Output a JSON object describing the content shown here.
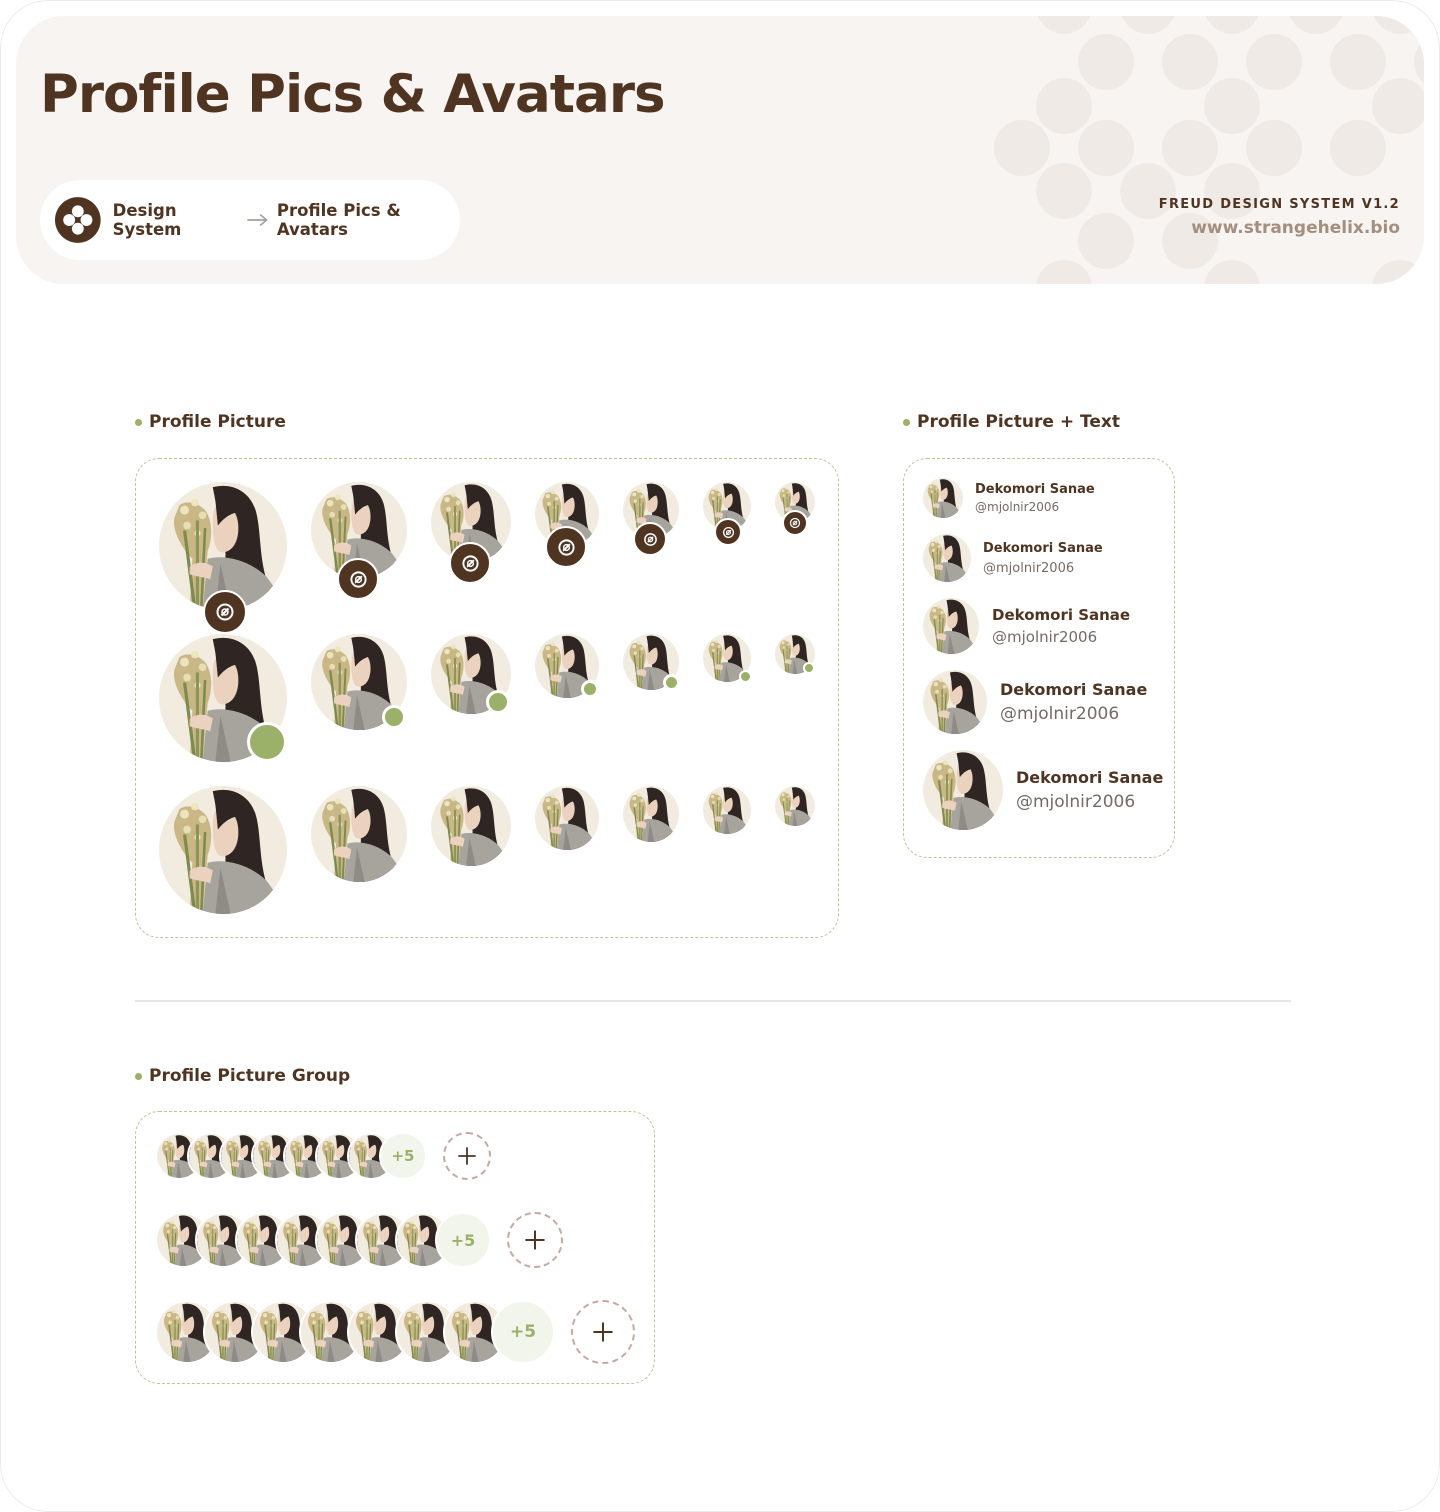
{
  "header": {
    "title": "Profile Pics & Avatars",
    "breadcrumb": {
      "root": "Design System",
      "current": "Profile Pics & Avatars"
    },
    "brand": "FREUD DESIGN SYSTEM V1.2",
    "url": "www.strangehelix.bio"
  },
  "sections": {
    "profile_picture": "Profile Picture",
    "profile_picture_text": "Profile Picture + Text",
    "profile_picture_group": "Profile Picture Group"
  },
  "user": {
    "name": "Dekomori Sanae",
    "handle": "@mjolnir2006"
  },
  "groups": {
    "more_label": "+5"
  },
  "icons": {
    "logo": "freud-logo-icon",
    "arrow": "arrow-right-icon",
    "badge": "verified-badge-icon",
    "status": "online-status-dot",
    "add": "plus-icon"
  },
  "colors": {
    "brown": "#4f3422",
    "green": "#9bb068",
    "light_brown": "#a28f80",
    "header_bg": "#f7f4f2"
  }
}
